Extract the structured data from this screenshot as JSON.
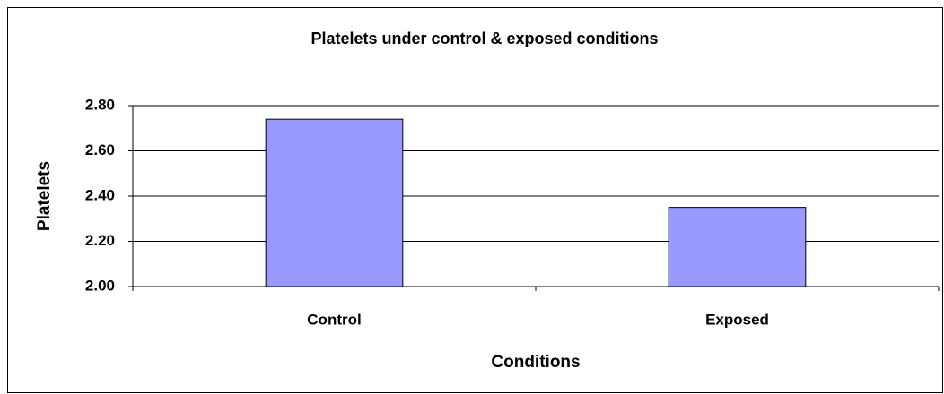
{
  "chart_data": {
    "type": "bar",
    "title": "Platelets under control & exposed conditions",
    "categories": [
      "Control",
      "Exposed"
    ],
    "values": [
      2.74,
      2.35
    ],
    "color": "#9999ff",
    "x_label": "Conditions",
    "y_label": "Platelets",
    "ylim": [
      2.0,
      2.8
    ],
    "yticks": [
      {
        "value": 2.0,
        "label": "2.00"
      },
      {
        "value": 2.2,
        "label": "2.20"
      },
      {
        "value": 2.4,
        "label": "2.40"
      },
      {
        "value": 2.6,
        "label": "2.60"
      },
      {
        "value": 2.8,
        "label": "2.80"
      }
    ],
    "grid": true
  }
}
